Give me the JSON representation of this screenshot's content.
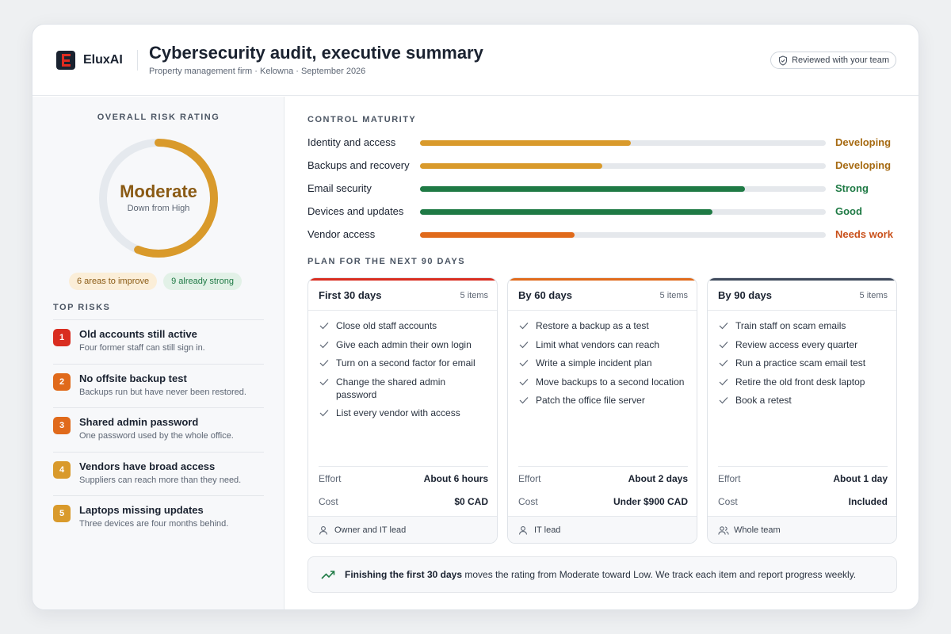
{
  "header": {
    "brand": "EluxAI",
    "title": "Cybersecurity audit, executive summary",
    "subtitle": "Property management firm · Kelowna · September 2026",
    "reviewed_label": "Reviewed with your team"
  },
  "colors": {
    "amber": "#d99a2b",
    "green": "#1f7a45",
    "orange": "#e06a1b",
    "red": "#d92d20",
    "slate": "#3f4a5c"
  },
  "risk_rating": {
    "label": "OVERALL RISK RATING",
    "value": "Moderate",
    "change": "Down from High",
    "gauge_fraction": 0.56,
    "improve_pill": "6 areas to improve",
    "strong_pill": "9 already strong"
  },
  "top_risks": {
    "label": "TOP RISKS",
    "items": [
      {
        "num": "1",
        "title": "Old accounts still active",
        "desc": "Four former staff can still sign in.",
        "color": "#d92d20"
      },
      {
        "num": "2",
        "title": "No offsite backup test",
        "desc": "Backups run but have never been restored.",
        "color": "#e06a1b"
      },
      {
        "num": "3",
        "title": "Shared admin password",
        "desc": "One password used by the whole office.",
        "color": "#e06a1b"
      },
      {
        "num": "4",
        "title": "Vendors have broad access",
        "desc": "Suppliers can reach more than they need.",
        "color": "#d99a2b"
      },
      {
        "num": "5",
        "title": "Laptops missing updates",
        "desc": "Three devices are four months behind.",
        "color": "#d99a2b"
      }
    ]
  },
  "control_maturity": {
    "label": "CONTROL MATURITY",
    "rows": [
      {
        "name": "Identity and access",
        "level": "Developing",
        "fraction": 0.52,
        "color": "#d99a2b",
        "text_color": "#a66a12"
      },
      {
        "name": "Backups and recovery",
        "level": "Developing",
        "fraction": 0.45,
        "color": "#d99a2b",
        "text_color": "#a66a12"
      },
      {
        "name": "Email security",
        "level": "Strong",
        "fraction": 0.8,
        "color": "#1f7a45",
        "text_color": "#1f7a45"
      },
      {
        "name": "Devices and updates",
        "level": "Good",
        "fraction": 0.72,
        "color": "#1f7a45",
        "text_color": "#1f7a45"
      },
      {
        "name": "Vendor access",
        "level": "Needs work",
        "fraction": 0.38,
        "color": "#e06a1b",
        "text_color": "#c9501a"
      }
    ]
  },
  "plan": {
    "label": "PLAN FOR THE NEXT 90 DAYS",
    "effort_label": "Effort",
    "cost_label": "Cost",
    "columns": [
      {
        "title": "First 30 days",
        "count": "5 items",
        "color": "#d92d20",
        "tasks": [
          "Close old staff accounts",
          "Give each admin their own login",
          "Turn on a second factor for email",
          "Change the shared admin password",
          "List every vendor with access"
        ],
        "effort": "About 6 hours",
        "cost": "$0 CAD",
        "owner": "Owner and IT lead",
        "owner_icon": "user-icon"
      },
      {
        "title": "By 60 days",
        "count": "5 items",
        "color": "#e06a1b",
        "tasks": [
          "Restore a backup as a test",
          "Limit what vendors can reach",
          "Write a simple incident plan",
          "Move backups to a second location",
          "Patch the office file server"
        ],
        "effort": "About 2 days",
        "cost": "Under $900 CAD",
        "owner": "IT lead",
        "owner_icon": "user-icon"
      },
      {
        "title": "By 90 days",
        "count": "5 items",
        "color": "#3f4a5c",
        "tasks": [
          "Train staff on scam emails",
          "Review access every quarter",
          "Run a practice scam email test",
          "Retire the old front desk laptop",
          "Book a retest"
        ],
        "effort": "About 1 day",
        "cost": "Included",
        "owner": "Whole team",
        "owner_icon": "users-icon"
      }
    ]
  },
  "footnote": {
    "bold": "Finishing the first 30 days",
    "rest": " moves the rating from Moderate toward Low. We track each item and report progress weekly."
  }
}
